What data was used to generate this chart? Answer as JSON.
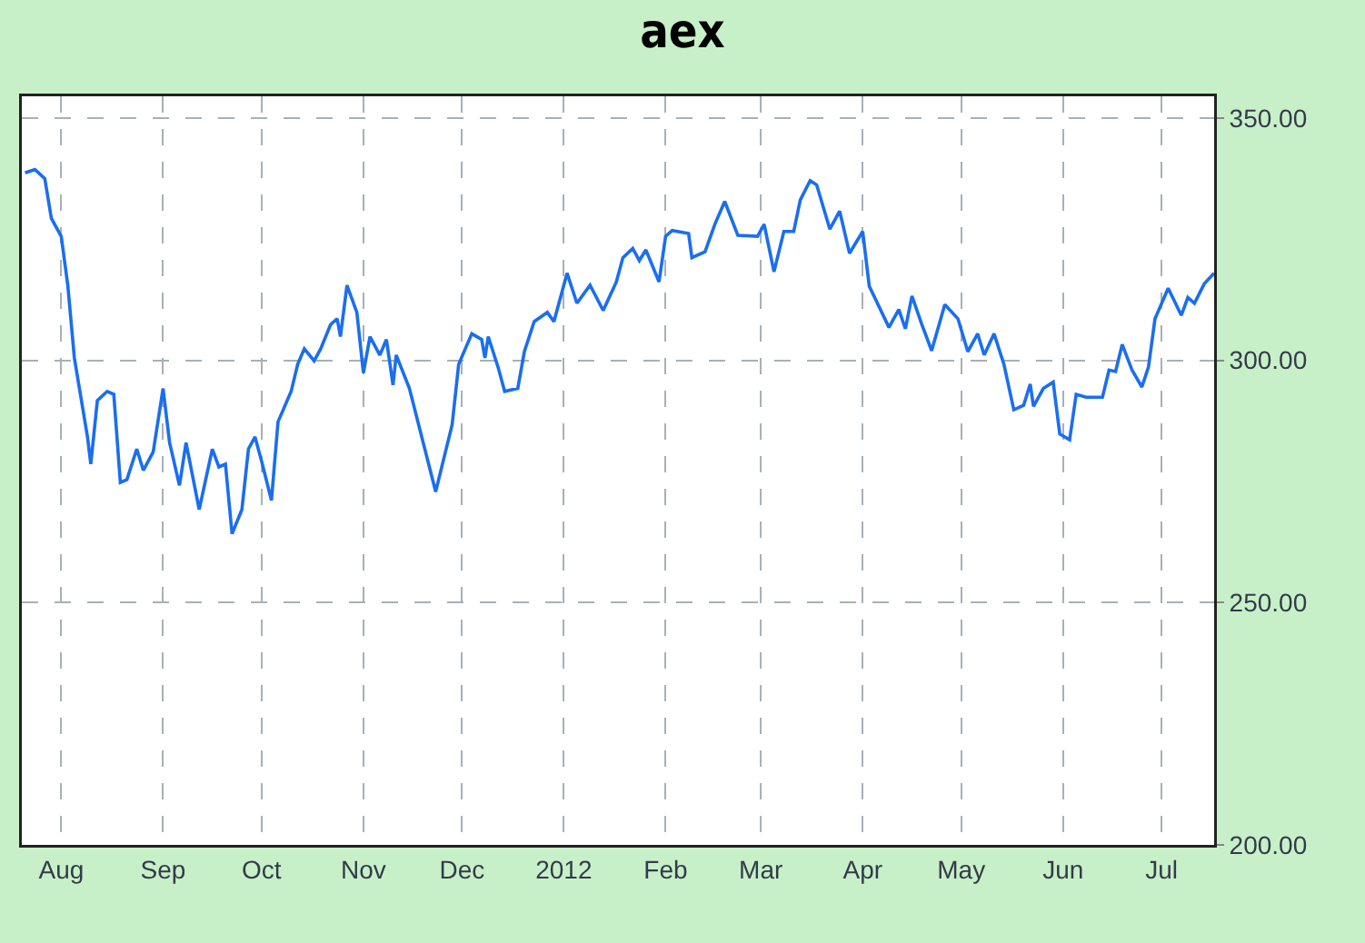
{
  "chart_data": {
    "type": "line",
    "title": "aex",
    "x": [
      "2011-07-21",
      "2011-07-24",
      "2011-07-27",
      "2011-07-29",
      "2011-08-01",
      "2011-08-03",
      "2011-08-05",
      "2011-08-09",
      "2011-08-10",
      "2011-08-12",
      "2011-08-15",
      "2011-08-17",
      "2011-08-19",
      "2011-08-21",
      "2011-08-24",
      "2011-08-26",
      "2011-08-29",
      "2011-09-01",
      "2011-09-03",
      "2011-09-06",
      "2011-09-08",
      "2011-09-12",
      "2011-09-16",
      "2011-09-18",
      "2011-09-20",
      "2011-09-22",
      "2011-09-25",
      "2011-09-27",
      "2011-09-29",
      "2011-10-01",
      "2011-10-04",
      "2011-10-06",
      "2011-10-10",
      "2011-10-12",
      "2011-10-14",
      "2011-10-17",
      "2011-10-19",
      "2011-10-22",
      "2011-10-24",
      "2011-10-25",
      "2011-10-27",
      "2011-10-30",
      "2011-11-01",
      "2011-11-03",
      "2011-11-06",
      "2011-11-08",
      "2011-11-10",
      "2011-11-11",
      "2011-11-15",
      "2011-11-23",
      "2011-11-28",
      "2011-11-30",
      "2011-12-04",
      "2011-12-07",
      "2011-12-08",
      "2011-12-09",
      "2011-12-12",
      "2011-12-14",
      "2011-12-18",
      "2011-12-20",
      "2011-12-23",
      "2011-12-27",
      "2011-12-29",
      "2012-01-02",
      "2012-01-05",
      "2012-01-09",
      "2012-01-13",
      "2012-01-17",
      "2012-01-19",
      "2012-01-22",
      "2012-01-24",
      "2012-01-26",
      "2012-01-30",
      "2012-02-01",
      "2012-02-03",
      "2012-02-08",
      "2012-02-09",
      "2012-02-13",
      "2012-02-16",
      "2012-02-19",
      "2012-02-23",
      "2012-02-29",
      "2012-03-02",
      "2012-03-05",
      "2012-03-08",
      "2012-03-11",
      "2012-03-13",
      "2012-03-16",
      "2012-03-18",
      "2012-03-22",
      "2012-03-25",
      "2012-03-28",
      "2012-04-01",
      "2012-04-03",
      "2012-04-09",
      "2012-04-12",
      "2012-04-14",
      "2012-04-16",
      "2012-04-19",
      "2012-04-22",
      "2012-04-26",
      "2012-04-30",
      "2012-05-03",
      "2012-05-06",
      "2012-05-08",
      "2012-05-11",
      "2012-05-14",
      "2012-05-17",
      "2012-05-20",
      "2012-05-22",
      "2012-05-23",
      "2012-05-26",
      "2012-05-29",
      "2012-05-31",
      "2012-06-03",
      "2012-06-05",
      "2012-06-08",
      "2012-06-13",
      "2012-06-15",
      "2012-06-17",
      "2012-06-19",
      "2012-06-22",
      "2012-06-25",
      "2012-06-27",
      "2012-06-29",
      "2012-07-03",
      "2012-07-07",
      "2012-07-09",
      "2012-07-11",
      "2012-07-14",
      "2012-07-17"
    ],
    "series": [
      {
        "color": "#1a6ef0",
        "values": [
          338.7,
          339.4,
          337.5,
          329.3,
          325.6,
          315.5,
          300.5,
          284.2,
          278.6,
          291.7,
          293.6,
          293.0,
          274.8,
          275.4,
          281.7,
          277.3,
          281.1,
          294.2,
          283.0,
          274.2,
          283.0,
          269.2,
          281.7,
          278.0,
          278.6,
          264.2,
          269.2,
          281.7,
          284.2,
          279.2,
          271.1,
          287.3,
          293.6,
          299.2,
          302.4,
          299.9,
          302.4,
          307.4,
          308.6,
          304.9,
          315.5,
          309.9,
          297.4,
          304.9,
          301.1,
          304.3,
          294.9,
          301.1,
          294.2,
          272.9,
          286.7,
          299.2,
          305.5,
          304.3,
          300.5,
          304.9,
          298.6,
          293.6,
          294.2,
          301.8,
          308.0,
          309.9,
          308.0,
          318.0,
          311.8,
          315.5,
          310.3,
          316.2,
          321.2,
          323.1,
          320.6,
          322.8,
          316.2,
          325.6,
          326.8,
          326.2,
          321.2,
          322.4,
          328.1,
          332.8,
          325.8,
          325.6,
          328.1,
          318.3,
          326.6,
          326.6,
          333.1,
          337.1,
          336.2,
          327.1,
          330.8,
          322.1,
          326.6,
          315.3,
          306.8,
          310.5,
          306.5,
          313.3,
          307.4,
          302.0,
          311.5,
          308.6,
          301.8,
          305.5,
          301.1,
          305.5,
          299.2,
          289.8,
          290.7,
          295.1,
          290.5,
          294.2,
          295.5,
          284.8,
          283.6,
          293.0,
          292.4,
          292.4,
          298.0,
          297.7,
          303.3,
          298.0,
          294.5,
          298.6,
          308.6,
          314.9,
          309.3,
          313.0,
          311.8,
          315.8,
          318.0
        ]
      }
    ],
    "xlim": [
      "2011-07-20",
      "2012-07-17"
    ],
    "xticks": [
      {
        "value": "2011-08-01",
        "label": "Aug"
      },
      {
        "value": "2011-09-01",
        "label": "Sep"
      },
      {
        "value": "2011-10-01",
        "label": "Oct"
      },
      {
        "value": "2011-11-01",
        "label": "Nov"
      },
      {
        "value": "2011-12-01",
        "label": "Dec"
      },
      {
        "value": "2012-01-01",
        "label": "2012"
      },
      {
        "value": "2012-02-01",
        "label": "Feb"
      },
      {
        "value": "2012-03-01",
        "label": "Mar"
      },
      {
        "value": "2012-04-01",
        "label": "Apr"
      },
      {
        "value": "2012-05-01",
        "label": "May"
      },
      {
        "value": "2012-06-01",
        "label": "Jun"
      },
      {
        "value": "2012-07-01",
        "label": "Jul"
      }
    ],
    "ylim": [
      200,
      354.5
    ],
    "yticks": [
      {
        "value": 200,
        "label": "200.00"
      },
      {
        "value": 250,
        "label": "250.00"
      },
      {
        "value": 300,
        "label": "300.00"
      },
      {
        "value": 350,
        "label": "350.00"
      }
    ],
    "grid": true,
    "line_style": "solid",
    "marker": "none"
  }
}
